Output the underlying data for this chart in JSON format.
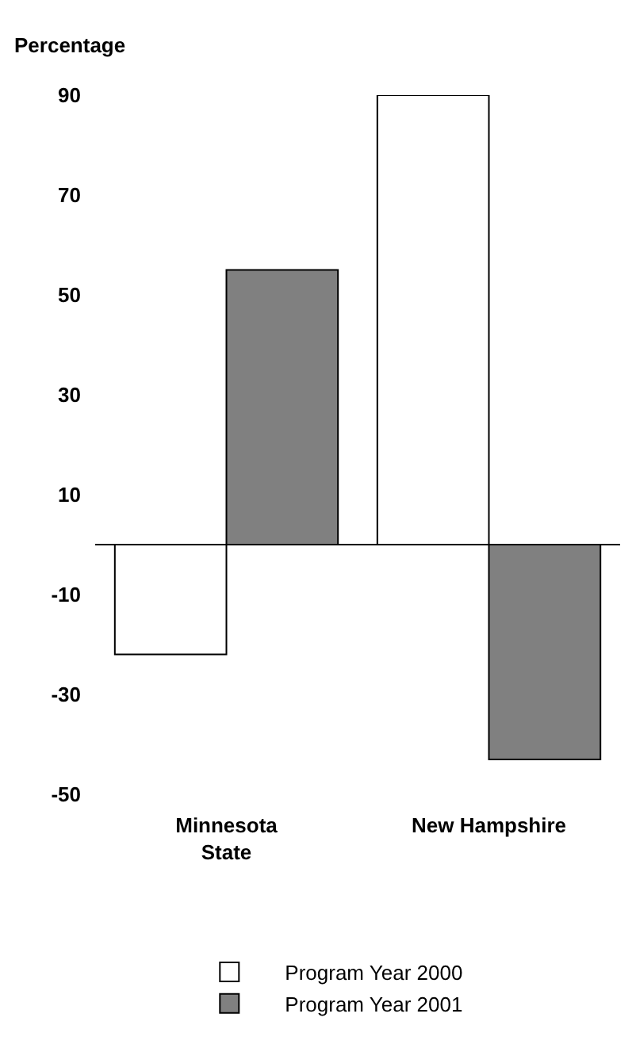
{
  "chart_data": {
    "type": "bar",
    "ylabel": "Percentage",
    "categories": [
      "Minnesota State",
      "New Hampshire"
    ],
    "series": [
      {
        "name": "Program Year 2000",
        "color": "#ffffff",
        "values": [
          -22,
          90
        ]
      },
      {
        "name": "Program Year 2001",
        "color": "#808080",
        "values": [
          55,
          -43
        ]
      }
    ],
    "ylim": [
      -50,
      90
    ],
    "yticks": [
      -50,
      -30,
      -10,
      10,
      30,
      50,
      70,
      90
    ],
    "legend": "bottom",
    "ref_lines": [
      {
        "axis": "y",
        "value": 0,
        "color": "#000000"
      }
    ]
  }
}
